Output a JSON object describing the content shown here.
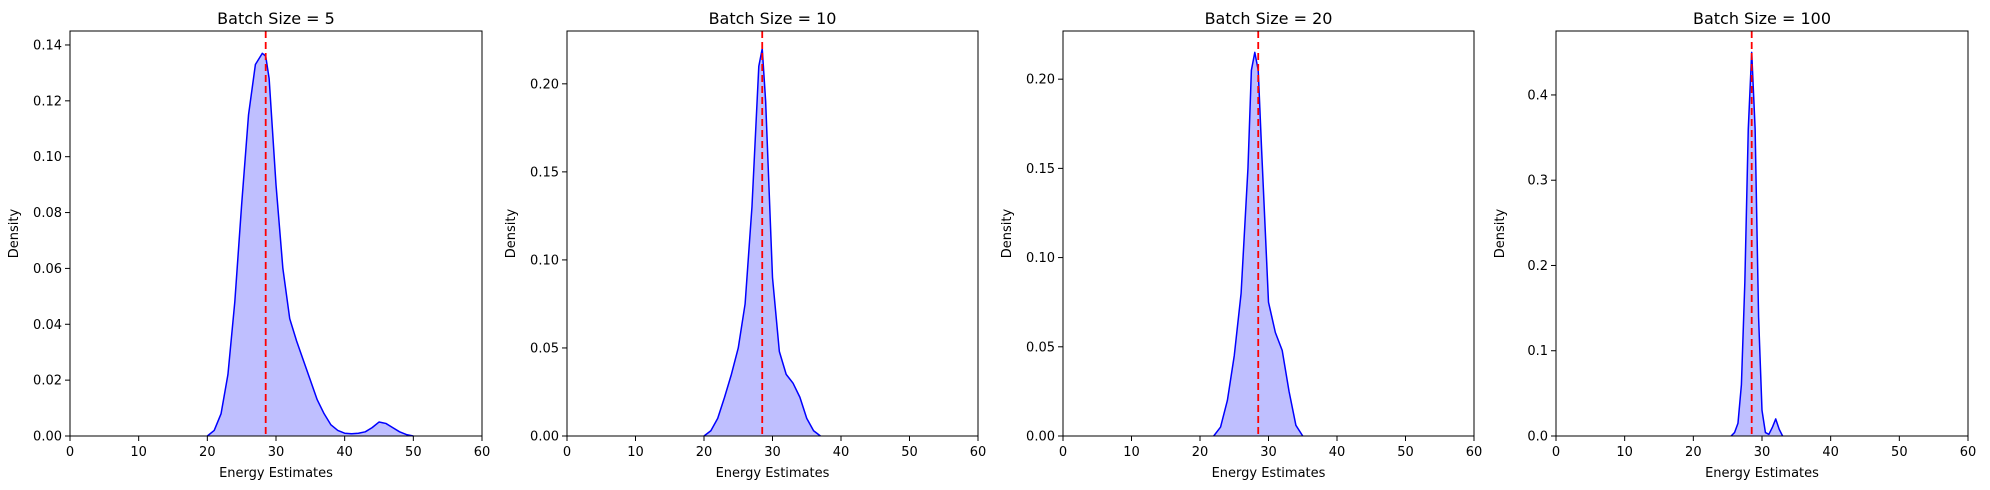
{
  "figure": {
    "charts": [
      "Batch Size  = 5",
      "Batch Size  = 10",
      "Batch Size  = 20",
      "Batch Size  = 100"
    ]
  },
  "chart_data": [
    {
      "type": "area",
      "title": "Batch Size  = 5",
      "xlabel": "Energy Estimates",
      "ylabel": "Density",
      "xlim": [
        0,
        60
      ],
      "ylim": [
        0,
        0.145
      ],
      "xticks": [
        0,
        10,
        20,
        30,
        40,
        50,
        60
      ],
      "xtick_labels": [
        "0",
        "10",
        "20",
        "30",
        "40",
        "50",
        "60"
      ],
      "yticks": [
        0,
        0.02,
        0.04,
        0.06,
        0.08,
        0.1,
        0.12,
        0.14
      ],
      "ytick_labels": [
        "0.00",
        "0.02",
        "0.04",
        "0.06",
        "0.08",
        "0.10",
        "0.12",
        "0.14"
      ],
      "reference_line_x": 28.5,
      "series": [
        {
          "x": [
            20,
            21,
            22,
            23,
            24,
            25,
            26,
            27,
            28,
            28.5,
            29,
            30,
            31,
            32,
            33,
            34,
            35,
            36,
            37,
            38,
            39,
            40,
            41,
            42,
            43,
            44,
            45,
            46,
            47,
            48,
            49,
            50
          ],
          "y": [
            0,
            0.002,
            0.008,
            0.022,
            0.048,
            0.083,
            0.115,
            0.133,
            0.137,
            0.136,
            0.128,
            0.09,
            0.06,
            0.042,
            0.034,
            0.027,
            0.02,
            0.013,
            0.008,
            0.004,
            0.002,
            0.001,
            0.0008,
            0.001,
            0.0015,
            0.003,
            0.005,
            0.0045,
            0.003,
            0.0015,
            0.0005,
            0
          ],
          "color": "#0000ff",
          "fill": "rgba(0,0,255,0.25)"
        }
      ],
      "grid": false,
      "reference_color": "#ff0000"
    },
    {
      "type": "area",
      "title": "Batch Size  = 10",
      "xlabel": "Energy Estimates",
      "ylabel": "Density",
      "xlim": [
        0,
        60
      ],
      "ylim": [
        0,
        0.23
      ],
      "xticks": [
        0,
        10,
        20,
        30,
        40,
        50,
        60
      ],
      "xtick_labels": [
        "0",
        "10",
        "20",
        "30",
        "40",
        "50",
        "60"
      ],
      "yticks": [
        0,
        0.05,
        0.1,
        0.15,
        0.2
      ],
      "ytick_labels": [
        "0.00",
        "0.05",
        "0.10",
        "0.15",
        "0.20"
      ],
      "reference_line_x": 28.5,
      "series": [
        {
          "x": [
            20,
            21,
            22,
            23,
            24,
            25,
            26,
            27,
            28,
            28.5,
            29,
            30,
            31,
            32,
            33,
            34,
            35,
            36,
            37
          ],
          "y": [
            0,
            0.003,
            0.01,
            0.022,
            0.035,
            0.05,
            0.075,
            0.13,
            0.21,
            0.22,
            0.19,
            0.09,
            0.048,
            0.035,
            0.03,
            0.022,
            0.01,
            0.003,
            0
          ],
          "color": "#0000ff",
          "fill": "rgba(0,0,255,0.25)"
        }
      ],
      "grid": false,
      "reference_color": "#ff0000"
    },
    {
      "type": "area",
      "title": "Batch Size  = 20",
      "xlabel": "Energy Estimates",
      "ylabel": "Density",
      "xlim": [
        0,
        60
      ],
      "ylim": [
        0,
        0.227
      ],
      "xticks": [
        0,
        10,
        20,
        30,
        40,
        50,
        60
      ],
      "xtick_labels": [
        "0",
        "10",
        "20",
        "30",
        "40",
        "50",
        "60"
      ],
      "yticks": [
        0,
        0.05,
        0.1,
        0.15,
        0.2
      ],
      "ytick_labels": [
        "0.00",
        "0.05",
        "0.10",
        "0.15",
        "0.20"
      ],
      "reference_line_x": 28.5,
      "series": [
        {
          "x": [
            22,
            23,
            24,
            25,
            26,
            27,
            27.5,
            28,
            28.5,
            29,
            30,
            31,
            32,
            33,
            34,
            35
          ],
          "y": [
            0,
            0.005,
            0.02,
            0.045,
            0.08,
            0.15,
            0.205,
            0.215,
            0.205,
            0.16,
            0.075,
            0.058,
            0.048,
            0.025,
            0.006,
            0
          ],
          "color": "#0000ff",
          "fill": "rgba(0,0,255,0.25)"
        }
      ],
      "grid": false,
      "reference_color": "#ff0000"
    },
    {
      "type": "area",
      "title": "Batch Size  = 100",
      "xlabel": "Energy Estimates",
      "ylabel": "Density",
      "xlim": [
        0,
        60
      ],
      "ylim": [
        0,
        0.475
      ],
      "xticks": [
        0,
        10,
        20,
        30,
        40,
        50,
        60
      ],
      "xtick_labels": [
        "0",
        "10",
        "20",
        "30",
        "40",
        "50",
        "60"
      ],
      "yticks": [
        0,
        0.1,
        0.2,
        0.3,
        0.4
      ],
      "ytick_labels": [
        "0.0",
        "0.1",
        "0.2",
        "0.3",
        "0.4"
      ],
      "reference_line_x": 28.5,
      "series": [
        {
          "x": [
            25.5,
            26,
            26.5,
            27,
            27.5,
            28,
            28.5,
            29,
            29.5,
            30,
            30.5,
            31,
            31.5,
            32,
            32.5,
            33
          ],
          "y": [
            0,
            0.004,
            0.015,
            0.06,
            0.18,
            0.36,
            0.45,
            0.36,
            0.14,
            0.03,
            0.004,
            0.002,
            0.01,
            0.02,
            0.008,
            0
          ],
          "color": "#0000ff",
          "fill": "rgba(0,0,255,0.25)"
        }
      ],
      "grid": false,
      "reference_color": "#ff0000"
    }
  ]
}
